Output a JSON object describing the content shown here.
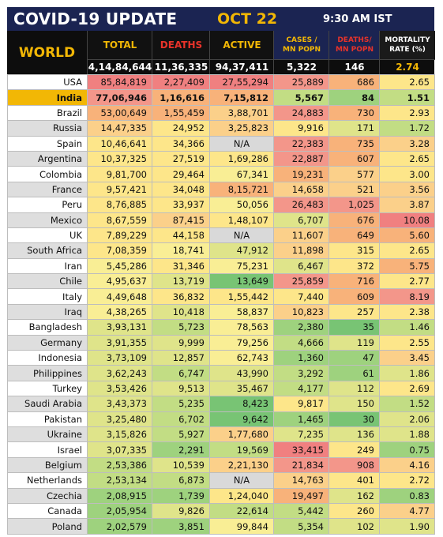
{
  "header": {
    "title": "COVID-19 UPDATE",
    "date": "OCT 22",
    "time": "9:30 AM IST",
    "region_label": "WORLD",
    "columns": [
      {
        "label": "TOTAL",
        "color": "#f2b705"
      },
      {
        "label": "DEATHS",
        "color": "#e8332a"
      },
      {
        "label": "ACTIVE",
        "color": "#f2b705"
      },
      {
        "label": "CASES /\nMN POPN",
        "color": "#f2b705"
      },
      {
        "label": "DEATHS/\nMN POPN",
        "color": "#e8332a"
      },
      {
        "label": "MORTALITY\nRATE (%)",
        "color": "#ffffff"
      }
    ],
    "world_values": [
      "4,14,84,644",
      "11,36,335",
      "94,37,411",
      "5,322",
      "146",
      "2.74"
    ]
  },
  "colors": {
    "dark_red": "#f08080",
    "red": "#f3968a",
    "orange": "#f8b27a",
    "light_orange": "#fbd08a",
    "yellow": "#fde68a",
    "light_yellow": "#f9ee95",
    "yellow_green": "#dfe48a",
    "light_green": "#c2dd84",
    "green": "#9ed27e",
    "dark_green": "#78c474",
    "gray": "#d9d9d9"
  },
  "rows": [
    {
      "country": "USA",
      "total": "85,84,819",
      "deaths": "2,27,409",
      "active": "27,55,294",
      "cases_mn": "25,889",
      "deaths_mn": "686",
      "mortality": "2.65",
      "highlight": false,
      "colors": [
        "dark_red",
        "dark_red",
        "dark_red",
        "red",
        "orange",
        "yellow"
      ]
    },
    {
      "country": "India",
      "total": "77,06,946",
      "deaths": "1,16,616",
      "active": "7,15,812",
      "cases_mn": "5,567",
      "deaths_mn": "84",
      "mortality": "1.51",
      "highlight": true,
      "colors": [
        "red",
        "orange",
        "orange",
        "light_green",
        "green",
        "light_green"
      ]
    },
    {
      "country": "Brazil",
      "total": "53,00,649",
      "deaths": "1,55,459",
      "active": "3,88,701",
      "cases_mn": "24,883",
      "deaths_mn": "730",
      "mortality": "2.93",
      "highlight": false,
      "colors": [
        "orange",
        "orange",
        "light_orange",
        "red",
        "orange",
        "yellow"
      ]
    },
    {
      "country": "Russia",
      "total": "14,47,335",
      "deaths": "24,952",
      "active": "3,25,823",
      "cases_mn": "9,916",
      "deaths_mn": "171",
      "mortality": "1.72",
      "highlight": false,
      "colors": [
        "light_orange",
        "yellow",
        "light_orange",
        "yellow",
        "yellow_green",
        "light_green"
      ]
    },
    {
      "country": "Spain",
      "total": "10,46,641",
      "deaths": "34,366",
      "active": "N/A",
      "cases_mn": "22,383",
      "deaths_mn": "735",
      "mortality": "3.28",
      "highlight": false,
      "colors": [
        "yellow",
        "yellow",
        "gray",
        "red",
        "orange",
        "light_orange"
      ]
    },
    {
      "country": "Argentina",
      "total": "10,37,325",
      "deaths": "27,519",
      "active": "1,69,286",
      "cases_mn": "22,887",
      "deaths_mn": "607",
      "mortality": "2.65",
      "highlight": false,
      "colors": [
        "yellow",
        "yellow",
        "yellow",
        "red",
        "orange",
        "yellow"
      ]
    },
    {
      "country": "Colombia",
      "total": "9,81,700",
      "deaths": "29,464",
      "active": "67,341",
      "cases_mn": "19,231",
      "deaths_mn": "577",
      "mortality": "3.00",
      "highlight": false,
      "colors": [
        "yellow",
        "yellow",
        "light_yellow",
        "orange",
        "light_orange",
        "yellow"
      ]
    },
    {
      "country": "France",
      "total": "9,57,421",
      "deaths": "34,048",
      "active": "8,15,721",
      "cases_mn": "14,658",
      "deaths_mn": "521",
      "mortality": "3.56",
      "highlight": false,
      "colors": [
        "yellow",
        "yellow",
        "orange",
        "light_orange",
        "light_orange",
        "light_orange"
      ]
    },
    {
      "country": "Peru",
      "total": "8,76,885",
      "deaths": "33,937",
      "active": "50,056",
      "cases_mn": "26,483",
      "deaths_mn": "1,025",
      "mortality": "3.87",
      "highlight": false,
      "colors": [
        "yellow",
        "yellow",
        "light_yellow",
        "red",
        "red",
        "light_orange"
      ]
    },
    {
      "country": "Mexico",
      "total": "8,67,559",
      "deaths": "87,415",
      "active": "1,48,107",
      "cases_mn": "6,707",
      "deaths_mn": "676",
      "mortality": "10.08",
      "highlight": false,
      "colors": [
        "yellow",
        "light_orange",
        "yellow",
        "yellow_green",
        "orange",
        "dark_red"
      ]
    },
    {
      "country": "UK",
      "total": "7,89,229",
      "deaths": "44,158",
      "active": "N/A",
      "cases_mn": "11,607",
      "deaths_mn": "649",
      "mortality": "5.60",
      "highlight": false,
      "colors": [
        "yellow",
        "yellow",
        "gray",
        "light_orange",
        "orange",
        "orange"
      ]
    },
    {
      "country": "South Africa",
      "total": "7,08,359",
      "deaths": "18,741",
      "active": "47,912",
      "cases_mn": "11,898",
      "deaths_mn": "315",
      "mortality": "2.65",
      "highlight": false,
      "colors": [
        "yellow",
        "light_yellow",
        "yellow_green",
        "light_orange",
        "yellow",
        "yellow"
      ]
    },
    {
      "country": "Iran",
      "total": "5,45,286",
      "deaths": "31,346",
      "active": "75,231",
      "cases_mn": "6,467",
      "deaths_mn": "372",
      "mortality": "5.75",
      "highlight": false,
      "colors": [
        "light_yellow",
        "yellow",
        "light_yellow",
        "yellow_green",
        "yellow",
        "orange"
      ]
    },
    {
      "country": "Chile",
      "total": "4,95,637",
      "deaths": "13,719",
      "active": "13,649",
      "cases_mn": "25,859",
      "deaths_mn": "716",
      "mortality": "2.77",
      "highlight": false,
      "colors": [
        "light_yellow",
        "yellow_green",
        "dark_green",
        "red",
        "orange",
        "yellow"
      ]
    },
    {
      "country": "Italy",
      "total": "4,49,648",
      "deaths": "36,832",
      "active": "1,55,442",
      "cases_mn": "7,440",
      "deaths_mn": "609",
      "mortality": "8.19",
      "highlight": false,
      "colors": [
        "light_yellow",
        "yellow",
        "yellow",
        "yellow",
        "orange",
        "red"
      ]
    },
    {
      "country": "Iraq",
      "total": "4,38,265",
      "deaths": "10,418",
      "active": "58,837",
      "cases_mn": "10,823",
      "deaths_mn": "257",
      "mortality": "2.38",
      "highlight": false,
      "colors": [
        "light_yellow",
        "yellow_green",
        "light_yellow",
        "light_orange",
        "yellow",
        "yellow"
      ]
    },
    {
      "country": "Bangladesh",
      "total": "3,93,131",
      "deaths": "5,723",
      "active": "78,563",
      "cases_mn": "2,380",
      "deaths_mn": "35",
      "mortality": "1.46",
      "highlight": false,
      "colors": [
        "yellow_green",
        "light_green",
        "light_yellow",
        "green",
        "dark_green",
        "light_green"
      ]
    },
    {
      "country": "Germany",
      "total": "3,91,355",
      "deaths": "9,999",
      "active": "79,256",
      "cases_mn": "4,666",
      "deaths_mn": "119",
      "mortality": "2.55",
      "highlight": false,
      "colors": [
        "yellow_green",
        "yellow_green",
        "light_yellow",
        "light_green",
        "yellow_green",
        "yellow"
      ]
    },
    {
      "country": "Indonesia",
      "total": "3,73,109",
      "deaths": "12,857",
      "active": "62,743",
      "cases_mn": "1,360",
      "deaths_mn": "47",
      "mortality": "3.45",
      "highlight": false,
      "colors": [
        "yellow_green",
        "yellow_green",
        "light_yellow",
        "green",
        "green",
        "light_orange"
      ]
    },
    {
      "country": "Philippines",
      "total": "3,62,243",
      "deaths": "6,747",
      "active": "43,990",
      "cases_mn": "3,292",
      "deaths_mn": "61",
      "mortality": "1.86",
      "highlight": false,
      "colors": [
        "yellow_green",
        "light_green",
        "yellow_green",
        "light_green",
        "green",
        "yellow_green"
      ]
    },
    {
      "country": "Turkey",
      "total": "3,53,426",
      "deaths": "9,513",
      "active": "35,467",
      "cases_mn": "4,177",
      "deaths_mn": "112",
      "mortality": "2.69",
      "highlight": false,
      "colors": [
        "yellow_green",
        "yellow_green",
        "yellow_green",
        "light_green",
        "yellow_green",
        "yellow"
      ]
    },
    {
      "country": "Saudi Arabia",
      "total": "3,43,373",
      "deaths": "5,235",
      "active": "8,423",
      "cases_mn": "9,817",
      "deaths_mn": "150",
      "mortality": "1.52",
      "highlight": false,
      "colors": [
        "yellow_green",
        "light_green",
        "dark_green",
        "yellow",
        "yellow_green",
        "light_green"
      ]
    },
    {
      "country": "Pakistan",
      "total": "3,25,480",
      "deaths": "6,702",
      "active": "9,642",
      "cases_mn": "1,465",
      "deaths_mn": "30",
      "mortality": "2.06",
      "highlight": false,
      "colors": [
        "yellow_green",
        "light_green",
        "dark_green",
        "green",
        "dark_green",
        "yellow_green"
      ]
    },
    {
      "country": "Ukraine",
      "total": "3,15,826",
      "deaths": "5,927",
      "active": "1,77,680",
      "cases_mn": "7,235",
      "deaths_mn": "136",
      "mortality": "1.88",
      "highlight": false,
      "colors": [
        "yellow_green",
        "light_green",
        "light_orange",
        "yellow_green",
        "yellow_green",
        "yellow_green"
      ]
    },
    {
      "country": "Israel",
      "total": "3,07,335",
      "deaths": "2,291",
      "active": "19,569",
      "cases_mn": "33,415",
      "deaths_mn": "249",
      "mortality": "0.75",
      "highlight": false,
      "colors": [
        "yellow_green",
        "green",
        "light_green",
        "dark_red",
        "yellow",
        "green"
      ]
    },
    {
      "country": "Belgium",
      "total": "2,53,386",
      "deaths": "10,539",
      "active": "2,21,130",
      "cases_mn": "21,834",
      "deaths_mn": "908",
      "mortality": "4.16",
      "highlight": false,
      "colors": [
        "light_green",
        "yellow_green",
        "light_orange",
        "red",
        "red",
        "light_orange"
      ]
    },
    {
      "country": "Netherlands",
      "total": "2,53,134",
      "deaths": "6,873",
      "active": "N/A",
      "cases_mn": "14,763",
      "deaths_mn": "401",
      "mortality": "2.72",
      "highlight": false,
      "colors": [
        "light_green",
        "light_green",
        "gray",
        "light_orange",
        "yellow",
        "yellow"
      ]
    },
    {
      "country": "Czechia",
      "total": "2,08,915",
      "deaths": "1,739",
      "active": "1,24,040",
      "cases_mn": "19,497",
      "deaths_mn": "162",
      "mortality": "0.83",
      "highlight": false,
      "colors": [
        "green",
        "green",
        "yellow",
        "orange",
        "yellow_green",
        "green"
      ]
    },
    {
      "country": "Canada",
      "total": "2,05,954",
      "deaths": "9,826",
      "active": "22,614",
      "cases_mn": "5,442",
      "deaths_mn": "260",
      "mortality": "4.77",
      "highlight": false,
      "colors": [
        "green",
        "yellow_green",
        "light_green",
        "light_green",
        "yellow",
        "light_orange"
      ]
    },
    {
      "country": "Poland",
      "total": "2,02,579",
      "deaths": "3,851",
      "active": "99,844",
      "cases_mn": "5,354",
      "deaths_mn": "102",
      "mortality": "1.90",
      "highlight": false,
      "colors": [
        "green",
        "green",
        "light_yellow",
        "light_green",
        "yellow_green",
        "yellow_green"
      ]
    }
  ]
}
